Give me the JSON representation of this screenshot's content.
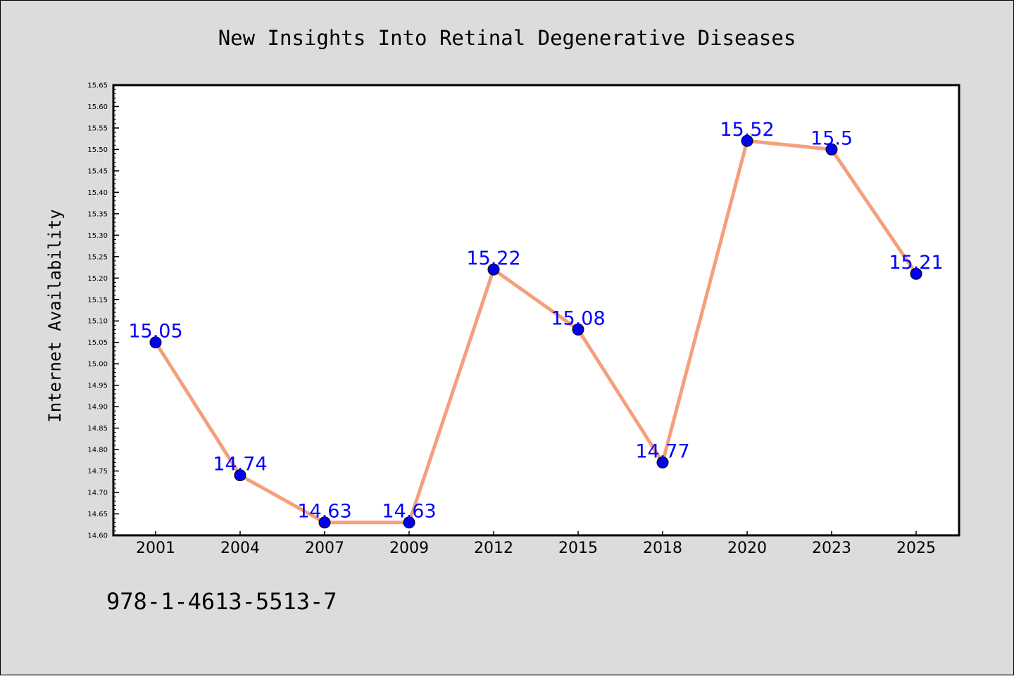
{
  "chart_data": {
    "type": "line",
    "title": "New Insights Into Retinal Degenerative Diseases",
    "xlabel": "",
    "ylabel": "Internet Availability",
    "categories": [
      "2001",
      "2004",
      "2007",
      "2009",
      "2012",
      "2015",
      "2018",
      "2020",
      "2023",
      "2025"
    ],
    "values": [
      15.05,
      14.74,
      14.63,
      14.63,
      15.22,
      15.08,
      14.77,
      15.52,
      15.5,
      15.21
    ],
    "data_labels": [
      "15.05",
      "14.74",
      "14.63",
      "14.63",
      "15.22",
      "15.08",
      "14.77",
      "15.52",
      "15.5",
      "15.21"
    ],
    "ylim": [
      14.6,
      15.65
    ],
    "y_ticks": [
      "14.60",
      "14.65",
      "14.70",
      "14.75",
      "14.80",
      "14.85",
      "14.90",
      "14.95",
      "15.00",
      "15.05",
      "15.10",
      "15.15",
      "15.20",
      "15.25",
      "15.30",
      "15.35",
      "15.40",
      "15.45",
      "15.50",
      "15.55",
      "15.60",
      "15.65"
    ],
    "grid": false,
    "legend": "none",
    "colors": {
      "line": "#f4a07c",
      "marker": "#0000ee",
      "data_label": "#0000ff",
      "background": "#dcdcdc",
      "plot_background": "#ffffff"
    }
  },
  "footer_text": "978-1-4613-5513-7"
}
